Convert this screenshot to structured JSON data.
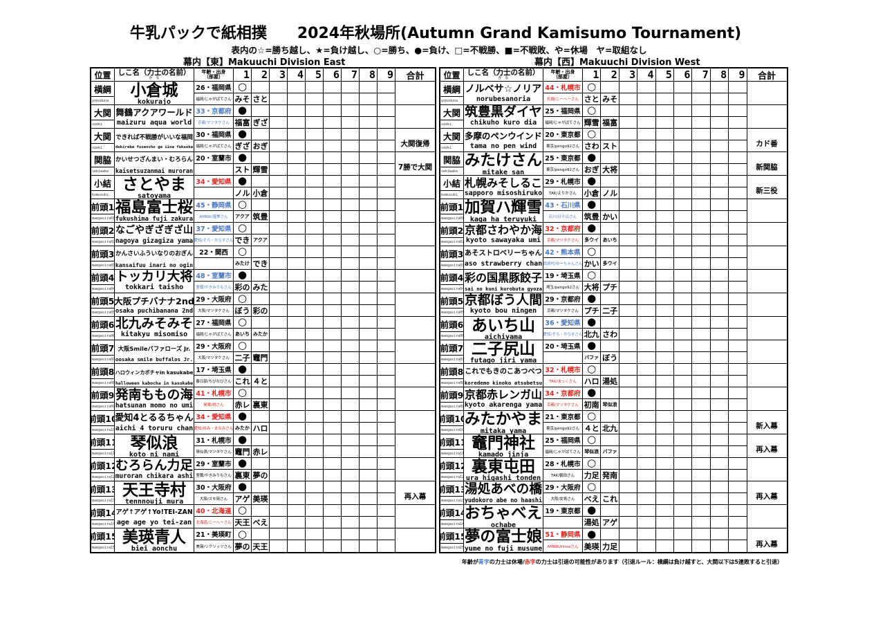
{
  "title": "牛乳パックで紙相撲　　2024年秋場所(Autumn Grand Kamisumo Tournament)",
  "legend": "表内の☆=勝ち越し、★=負け越し、○=勝ち、●=負け、□=不戦勝、■=不戦敗、や=休場　ヤ=取組なし",
  "colors": {
    "blue": "#4a78c2",
    "red": "#e3241f",
    "black": "#000000"
  },
  "headers": {
    "rank": "位置",
    "name": "しこ名（力士の名前）",
    "kana": "か　な",
    "age": "年齢・出身",
    "stable": "（部屋）",
    "days": [
      "1",
      "2",
      "3",
      "4",
      "5",
      "6",
      "7",
      "8",
      "9"
    ],
    "total": "合計"
  },
  "east": {
    "label": "幕内【東】Makuuchi Division East",
    "rows": [
      {
        "rank": "横綱",
        "rank_roma": "yokoduna",
        "name": "小倉城",
        "roma": "kokurajo",
        "age": "26・福岡県",
        "stable": "福岡/じゃがばてさん",
        "color": "black",
        "results": [
          "○",
          ""
        ],
        "opponents": [
          "みそ",
          "さと"
        ],
        "note": ""
      },
      {
        "rank": "大関",
        "rank_roma": "ozeki",
        "name": "舞鶴アクアワールド",
        "roma": "maizuru aqua world",
        "age": "33・京都府",
        "stable": "京都/マツタケさん",
        "color": "blue",
        "results": [
          "●",
          ""
        ],
        "opponents": [
          "福富",
          "ぎざ"
        ],
        "note": ""
      },
      {
        "rank": "大関",
        "rank_roma": "ozeki",
        "name": "できれば不戦勝がいいな福岡",
        "roma": "dekireba fusensho ga iina fukuoka",
        "age": "30・福岡県",
        "stable": "福岡/じゃがばてさん",
        "color": "black",
        "results": [
          "●",
          ""
        ],
        "opponents": [
          "ぎざ",
          "おぎ"
        ],
        "note": "大関復帰"
      },
      {
        "rank": "関脇",
        "rank_roma": "sekiwake",
        "name": "かいせつざんまい・むろらん",
        "roma": "kaisetsuzanmai muroran",
        "age": "20・室蘭市",
        "stable": "",
        "color": "black",
        "results": [
          "●",
          ""
        ],
        "opponents": [
          "スト",
          "輝雪"
        ],
        "note": "7勝で大関"
      },
      {
        "rank": "小結",
        "rank_roma": "komusubi",
        "name": "さとやま",
        "roma": "satoyama",
        "age": "34・愛知県",
        "stable": "",
        "color": "red",
        "results": [
          "●",
          ""
        ],
        "opponents": [
          "ノル",
          "小倉"
        ],
        "note": ""
      },
      {
        "rank": "前頭1",
        "rank_roma": "maegasira01",
        "name": "福島富士桜",
        "roma": "fukushima fuji zakura",
        "age": "45・静岡県",
        "stable": "AMBIK/渥美さん",
        "color": "blue",
        "results": [
          "○",
          ""
        ],
        "opponents": [
          "アクア",
          "筑豊"
        ],
        "note": ""
      },
      {
        "rank": "前頭2",
        "rank_roma": "maegasira02",
        "name": "なごやぎざぎざ山",
        "roma": "nagoya gizagiza yama",
        "age": "37・愛知県",
        "stable": "愛知/そら・からすさん",
        "color": "blue",
        "results": [
          "○",
          ""
        ],
        "opponents": [
          "でき",
          "アクア"
        ],
        "note": ""
      },
      {
        "rank": "前頭3",
        "rank_roma": "maegasira03",
        "name": "かんさいふういなりのおぎん",
        "roma": "kansaifuu inari no ogin",
        "age": "22・関西",
        "stable": "",
        "color": "black",
        "results": [
          "○",
          ""
        ],
        "opponents": [
          "みたけ",
          "でき"
        ],
        "note": ""
      },
      {
        "rank": "前頭4",
        "rank_roma": "maegasira04",
        "name": "トッカリ大将",
        "roma": "tokkari taisho",
        "age": "48・室蘭市",
        "stable": "室蘭/やきみりもさん",
        "color": "blue",
        "results": [
          "●",
          ""
        ],
        "opponents": [
          "彩の",
          "みた"
        ],
        "note": ""
      },
      {
        "rank": "前頭5",
        "rank_roma": "maegasira05",
        "name": "大阪プチバナナ2nd",
        "roma": "osaka puchibanana 2nd",
        "age": "29・大阪府",
        "stable": "大阪/マツタケさん",
        "color": "black",
        "results": [
          "○",
          ""
        ],
        "opponents": [
          "ぼう",
          "彩の"
        ],
        "note": ""
      },
      {
        "rank": "前頭6",
        "rank_roma": "maegasira06",
        "name": "北九みそみそ",
        "roma": "kitakyu misomiso",
        "age": "27・福岡県",
        "stable": "福岡/じゃがばてさん",
        "color": "black",
        "results": [
          "○",
          ""
        ],
        "opponents": [
          "あいち",
          "みたか"
        ],
        "note": ""
      },
      {
        "rank": "前頭7",
        "rank_roma": "maegasira07",
        "name": "大阪Smileバファローズ Jr.",
        "roma": "oosaka smile buffalos Jr.",
        "age": "29・大阪府",
        "stable": "大阪/マツタケさん",
        "color": "black",
        "results": [
          "○",
          ""
        ],
        "opponents": [
          "二子",
          "竈門"
        ],
        "note": ""
      },
      {
        "rank": "前頭8",
        "rank_roma": "maegasira08",
        "name": "ハロウィンカボチャin kasukabe",
        "roma": "halloween kabocha in kasukabe",
        "age": "17・埼玉県",
        "stable": "春日部/ちびなびさん",
        "color": "black",
        "results": [
          "●",
          ""
        ],
        "opponents": [
          "これ",
          "４と"
        ],
        "note": ""
      },
      {
        "rank": "前頭9",
        "rank_roma": "maegasira09",
        "name": "発南ももの海",
        "roma": "hatsunan momo no umi",
        "age": "41・札幌市",
        "stable": "発寒/桃さん",
        "color": "red",
        "results": [
          "○",
          ""
        ],
        "opponents": [
          "赤レ",
          "裏東"
        ],
        "note": ""
      },
      {
        "rank": "前頭10",
        "rank_roma": "maegasira10",
        "name": "愛知4とるるちゃん",
        "roma": "aichi 4 toruru chan",
        "age": "34・愛知県",
        "stable": "愛知/ゆみ・まなみさん",
        "color": "red",
        "results": [
          "●",
          ""
        ],
        "opponents": [
          "みたか",
          "ハロ"
        ],
        "note": ""
      },
      {
        "rank": "前頭11",
        "rank_roma": "maegasira11",
        "name": "琴似浪",
        "roma": "koto ni nami",
        "age": "31・札幌市",
        "stable": "琴似浪/マツタケさん",
        "color": "black",
        "results": [
          "●",
          ""
        ],
        "opponents": [
          "竈門",
          "赤レ"
        ],
        "note": ""
      },
      {
        "rank": "前頭12",
        "rank_roma": "maegasira12",
        "name": "むろらん力足",
        "roma": "muroran chikara ashi",
        "age": "29・室蘭市",
        "stable": "室蘭/やきみりもさん",
        "color": "black",
        "results": [
          "●",
          ""
        ],
        "opponents": [
          "裏東",
          "夢の"
        ],
        "note": ""
      },
      {
        "rank": "前頭13",
        "rank_roma": "maegasira13",
        "name": "天王寺村",
        "roma": "tennnouji mura",
        "age": "30・大阪府",
        "stable": "大阪/スモ岡さん",
        "color": "black",
        "results": [
          "●",
          ""
        ],
        "opponents": [
          "アゲ",
          "美瑛"
        ],
        "note": "再入幕"
      },
      {
        "rank": "前頭14",
        "rank_roma": "maegasira14",
        "name": "アゲ↑アゲ↑Yo!TEI-ZAN",
        "roma": "age age yo tei-zan",
        "age": "40・北海道",
        "stable": "北海道/こーへーさん",
        "color": "red",
        "results": [
          "○",
          ""
        ],
        "opponents": [
          "天王",
          "べえ"
        ],
        "note": ""
      },
      {
        "rank": "前頭15",
        "rank_roma": "maegasira15",
        "name": "美瑛青人",
        "roma": "biei aonchu",
        "age": "21・美瑛町",
        "stable": "美瑛/リクリッツさん",
        "color": "black",
        "results": [
          "○",
          ""
        ],
        "opponents": [
          "夢の",
          "天王"
        ],
        "note": ""
      }
    ]
  },
  "west": {
    "label": "幕内【西】Makuuchi Division West",
    "rows": [
      {
        "rank": "横綱",
        "rank_roma": "yokoduna",
        "name": "ノルベサ☆ノリア",
        "roma": "norubesanoria",
        "age": "44・札幌市",
        "stable": "札幌/こーへーさん",
        "color": "red",
        "results": [
          "○",
          ""
        ],
        "opponents": [
          "さと",
          "みそ"
        ],
        "note": ""
      },
      {
        "rank": "大関",
        "rank_roma": "ozeki",
        "name": "筑豊黒ダイヤ",
        "roma": "chikuho kuro dia",
        "age": "25・福岡県",
        "stable": "福岡/じゃがばてさん",
        "color": "black",
        "results": [
          "○",
          ""
        ],
        "opponents": [
          "輝雪",
          "福富"
        ],
        "note": ""
      },
      {
        "rank": "大関",
        "rank_roma": "ozeki",
        "name": "多摩のペンウインド",
        "roma": "tama no pen wind",
        "age": "20・東京都",
        "stable": "東京/pengo92さん",
        "color": "black",
        "results": [
          "○",
          ""
        ],
        "opponents": [
          "さわ",
          "スト"
        ],
        "note": "カド番"
      },
      {
        "rank": "関脇",
        "rank_roma": "sekiwake",
        "name": "みたけさん",
        "roma": "mitake san",
        "age": "25・東京都",
        "stable": "東京/pengo92さん",
        "color": "black",
        "results": [
          "●",
          ""
        ],
        "opponents": [
          "おぎ",
          "大将"
        ],
        "note": "新関脇"
      },
      {
        "rank": "小結",
        "rank_roma": "komusubi",
        "name": "札幌みそしるこ",
        "roma": "sapporo misoshiruko",
        "age": "29・札幌市",
        "stable": "TAK/えりかさん",
        "color": "black",
        "results": [
          "●",
          ""
        ],
        "opponents": [
          "小倉",
          "ノル"
        ],
        "note": "新三役"
      },
      {
        "rank": "前頭1",
        "rank_roma": "maegasira01",
        "name": "加賀ハ輝雪",
        "roma": "kaga ha teruyuki",
        "age": "43・石川県",
        "stable": "石川/日々山さん",
        "color": "blue",
        "results": [
          "●",
          ""
        ],
        "opponents": [
          "筑豊",
          "かい"
        ],
        "note": ""
      },
      {
        "rank": "前頭2",
        "rank_roma": "maegasira02",
        "name": "京都さわやか海",
        "roma": "kyoto sawayaka umi",
        "age": "32・京都府",
        "stable": "京都/マツタケさん",
        "color": "red",
        "results": [
          "●",
          ""
        ],
        "opponents": [
          "多ウイ",
          "あいち"
        ],
        "note": ""
      },
      {
        "rank": "前頭3",
        "rank_roma": "maegasira03",
        "name": "あそストロベリーちゃん",
        "roma": "aso strawberry chan",
        "age": "42・熊本県",
        "stable": "西原村/ゆーちゃんさん",
        "color": "blue",
        "results": [
          "○",
          ""
        ],
        "opponents": [
          "かい",
          "多ウイ"
        ],
        "note": ""
      },
      {
        "rank": "前頭4",
        "rank_roma": "maegasira04",
        "name": "彩の国黒豚餃子",
        "roma": "sai no kuni kurobuta gyoza",
        "age": "19・埼玉県",
        "stable": "埼玉/pengo92さん",
        "color": "black",
        "results": [
          "○",
          ""
        ],
        "opponents": [
          "大将",
          "プチ"
        ],
        "note": ""
      },
      {
        "rank": "前頭5",
        "rank_roma": "maegasira05",
        "name": "京都ぼう人間",
        "roma": "kyoto bou ningen",
        "age": "29・京都府",
        "stable": "京都/マツタケさん",
        "color": "black",
        "results": [
          "●",
          ""
        ],
        "opponents": [
          "プチ",
          "二子"
        ],
        "note": ""
      },
      {
        "rank": "前頭6",
        "rank_roma": "maegasira06",
        "name": "あいち山",
        "roma": "aichiyama",
        "age": "36・愛知県",
        "stable": "愛知/そら・からすさん",
        "color": "blue",
        "results": [
          "●",
          ""
        ],
        "opponents": [
          "北九",
          "さわ"
        ],
        "note": ""
      },
      {
        "rank": "前頭7",
        "rank_roma": "maegasira07",
        "name": "二子尻山",
        "roma": "futago jiri yama",
        "age": "20・埼玉県",
        "stable": "",
        "color": "black",
        "results": [
          "●",
          ""
        ],
        "opponents": [
          "バファ",
          "ぼう"
        ],
        "note": ""
      },
      {
        "rank": "前頭8",
        "rank_roma": "maegasira08",
        "name": "これでもきのこあつべつ",
        "roma": "koredemo kinoko atsubetsu",
        "age": "32・札幌市",
        "stable": "TAK/まっくさん",
        "color": "red",
        "results": [
          "○",
          ""
        ],
        "opponents": [
          "ハロ",
          "湯処"
        ],
        "note": ""
      },
      {
        "rank": "前頭9",
        "rank_roma": "maegasira09",
        "name": "京都赤レンガ山",
        "roma": "kyoto akarenga yama",
        "age": "34・京都府",
        "stable": "京都/マツタケさん",
        "color": "red",
        "results": [
          "●",
          ""
        ],
        "opponents": [
          "初南",
          "琴似浪"
        ],
        "note": ""
      },
      {
        "rank": "前頭10",
        "rank_roma": "maegasira10",
        "name": "みたかやま",
        "roma": "mitaka yama",
        "age": "21・東京都",
        "stable": "東京/pengo92さん",
        "color": "black",
        "results": [
          "○",
          ""
        ],
        "opponents": [
          "４と",
          "北九"
        ],
        "note": "新入幕"
      },
      {
        "rank": "前頭11",
        "rank_roma": "maegasira11",
        "name": "竈門神社",
        "roma": "kamado jinja",
        "age": "25・福岡県",
        "stable": "福岡/じゃがばてさん",
        "color": "black",
        "results": [
          "○",
          ""
        ],
        "opponents": [
          "琴似浪",
          "バファ"
        ],
        "note": "再入幕"
      },
      {
        "rank": "前頭12",
        "rank_roma": "maegasira12",
        "name": "裏東屯田",
        "roma": "ura higashi tonden",
        "age": "28・札幌市",
        "stable": "TAK/鶴田さん",
        "color": "black",
        "results": [
          "○",
          ""
        ],
        "opponents": [
          "力足",
          "発南"
        ],
        "note": ""
      },
      {
        "rank": "前頭13",
        "rank_roma": "maegasira13",
        "name": "湯処あべの橋",
        "roma": "yudokoro abe no haashi",
        "age": "29・大阪府",
        "stable": "大阪/女将さん",
        "color": "black",
        "results": [
          "○",
          ""
        ],
        "opponents": [
          "べえ",
          "これ"
        ],
        "note": "再入幕"
      },
      {
        "rank": "前頭14",
        "rank_roma": "maegasira14",
        "name": "おちゃべえ",
        "roma": "ochabe",
        "age": "19・東京都",
        "stable": "",
        "color": "black",
        "results": [
          "●",
          ""
        ],
        "opponents": [
          "湯処",
          "アゲ"
        ],
        "note": ""
      },
      {
        "rank": "前頭15",
        "rank_roma": "maegasira15",
        "name": "夢の富士娘",
        "roma": "yume no fuji musume",
        "age": "51・静岡県",
        "stable": "AMBIK/Hiroeさん",
        "color": "red",
        "results": [
          "●",
          ""
        ],
        "opponents": [
          "美瑛",
          "力足"
        ],
        "note": "再入幕"
      }
    ]
  },
  "footnote": {
    "p1": "年齢が",
    "blue": "青字",
    "p2": "の力士は休場/",
    "red": "赤字",
    "p3": "の力士は引退の可能性があります（引退ルール：横綱は負け越すと、大関以下は5連敗すると引退）"
  }
}
